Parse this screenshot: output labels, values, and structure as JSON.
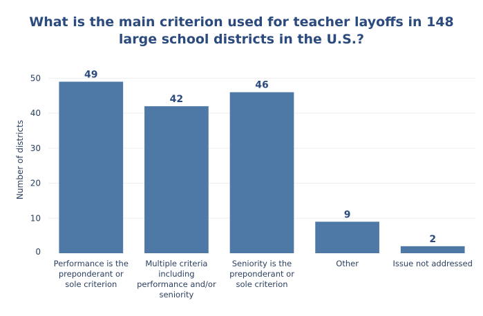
{
  "chart_data": {
    "type": "bar",
    "title": "What is the main criterion used for teacher layoffs in 148\nlarge school districts in the U.S.?",
    "xlabel": "",
    "ylabel": "Number of districts",
    "categories": [
      "Performance is the\npreponderant or\nsole criterion",
      "Multiple criteria\nincluding\nperformance and/or\nseniority",
      "Seniority is the\npreponderant or\nsole criterion",
      "Other",
      "Issue not addressed"
    ],
    "values": [
      49,
      42,
      46,
      9,
      2
    ],
    "data_labels": [
      "49",
      "42",
      "46",
      "9",
      "2"
    ],
    "ylim": [
      0,
      55
    ],
    "yticks": [
      0,
      10,
      20,
      30,
      40,
      50
    ],
    "grid": true,
    "colors": {
      "bar": "#4e79a7",
      "title": "#2b4a7d",
      "axis_text": "#2a3f5f",
      "data_label": "#2b4a7d",
      "grid": "#eeeeee"
    }
  }
}
